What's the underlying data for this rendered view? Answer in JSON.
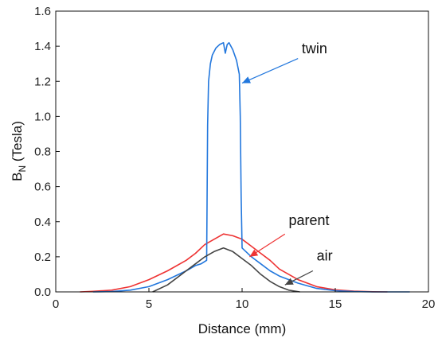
{
  "chart_data": {
    "type": "line",
    "xlabel": "Distance (mm)",
    "ylabel_main": "B",
    "ylabel_sub": "N",
    "ylabel_rest": " (Tesla)",
    "xlim": [
      0,
      20
    ],
    "ylim": [
      0,
      1.6
    ],
    "x_ticks": [
      0,
      5,
      10,
      15,
      20
    ],
    "y_ticks": [
      0.0,
      0.2,
      0.4,
      0.6,
      0.8,
      1.0,
      1.2,
      1.4,
      1.6
    ],
    "x_tick_labels": [
      "0",
      "5",
      "10",
      "15",
      "20"
    ],
    "y_tick_labels": [
      "0.0",
      "0.2",
      "0.4",
      "0.6",
      "0.8",
      "1.0",
      "1.2",
      "1.4",
      "1.6"
    ],
    "grid": false,
    "legend": "none",
    "series": [
      {
        "key": "parent",
        "color": "#ee3333",
        "x": [
          1.3,
          2,
          3,
          4,
          5,
          6,
          7,
          7.5,
          8,
          8.5,
          9,
          9.5,
          10,
          10.5,
          11,
          11.5,
          12,
          13,
          14,
          15,
          16,
          17,
          17.8
        ],
        "y": [
          0.0,
          0.003,
          0.01,
          0.03,
          0.07,
          0.12,
          0.18,
          0.22,
          0.27,
          0.3,
          0.33,
          0.32,
          0.3,
          0.26,
          0.22,
          0.18,
          0.13,
          0.07,
          0.03,
          0.012,
          0.004,
          0.001,
          0.0
        ]
      },
      {
        "key": "twin",
        "color": "#2277dd",
        "x": [
          2,
          3,
          4,
          5,
          6,
          7,
          7.5,
          7.8,
          8.1,
          8.15,
          8.2,
          8.3,
          8.4,
          8.6,
          8.8,
          9.0,
          9.1,
          9.2,
          9.3,
          9.5,
          9.7,
          9.85,
          9.9,
          9.95,
          10.0,
          10.5,
          11,
          11.5,
          12,
          13,
          14,
          15,
          16,
          17,
          18,
          19
        ],
        "y": [
          0.0,
          0.002,
          0.01,
          0.03,
          0.07,
          0.12,
          0.15,
          0.16,
          0.18,
          0.95,
          1.2,
          1.3,
          1.35,
          1.39,
          1.41,
          1.42,
          1.36,
          1.41,
          1.42,
          1.38,
          1.32,
          1.24,
          1.0,
          0.55,
          0.25,
          0.2,
          0.16,
          0.12,
          0.09,
          0.05,
          0.02,
          0.007,
          0.002,
          0.0,
          0.0,
          0.0
        ]
      },
      {
        "key": "air",
        "color": "#444444",
        "x": [
          5.2,
          6,
          7,
          7.5,
          8,
          8.5,
          9,
          9.5,
          10,
          10.5,
          11,
          11.5,
          12,
          12.5,
          13.1
        ],
        "y": [
          0.0,
          0.04,
          0.12,
          0.16,
          0.2,
          0.23,
          0.25,
          0.23,
          0.19,
          0.15,
          0.1,
          0.06,
          0.03,
          0.01,
          0.0
        ]
      }
    ],
    "annotations": [
      {
        "key": "twin",
        "text": "twin",
        "color": "#2277dd",
        "text_at": [
          13.2,
          1.36
        ],
        "arrow_from": [
          13.0,
          1.33
        ],
        "arrow_to": [
          10.0,
          1.19
        ]
      },
      {
        "key": "parent",
        "text": "parent",
        "color": "#ee3333",
        "text_at": [
          12.5,
          0.38
        ],
        "arrow_from": [
          12.3,
          0.33
        ],
        "arrow_to": [
          10.4,
          0.2
        ]
      },
      {
        "key": "air",
        "text": "air",
        "color": "#444444",
        "text_at": [
          14.0,
          0.18
        ],
        "arrow_from": [
          13.8,
          0.12
        ],
        "arrow_to": [
          12.3,
          0.04
        ]
      }
    ]
  }
}
